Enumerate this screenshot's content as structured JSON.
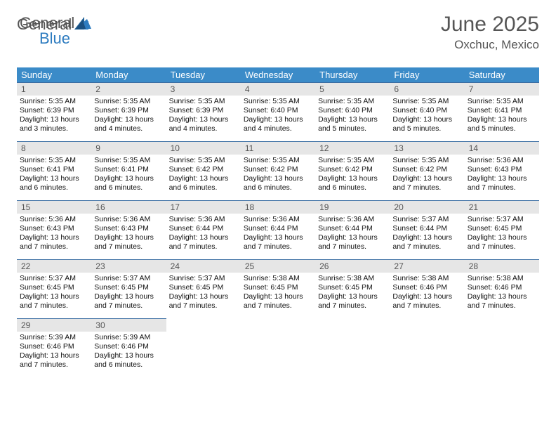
{
  "logo": {
    "general": "General",
    "blue": "Blue"
  },
  "title": "June 2025",
  "location": "Oxchuc, Mexico",
  "colors": {
    "header_bg": "#3b8bc8",
    "header_text": "#ffffff",
    "daynum_bg": "#e6e6e6",
    "daynum_border": "#3b6ea3",
    "title_color": "#555555",
    "logo_blue": "#2e7cc0"
  },
  "weekdays": [
    "Sunday",
    "Monday",
    "Tuesday",
    "Wednesday",
    "Thursday",
    "Friday",
    "Saturday"
  ],
  "weeks": [
    [
      {
        "day": "1",
        "sunrise": "Sunrise: 5:35 AM",
        "sunset": "Sunset: 6:39 PM",
        "daylight": "Daylight: 13 hours and 3 minutes."
      },
      {
        "day": "2",
        "sunrise": "Sunrise: 5:35 AM",
        "sunset": "Sunset: 6:39 PM",
        "daylight": "Daylight: 13 hours and 4 minutes."
      },
      {
        "day": "3",
        "sunrise": "Sunrise: 5:35 AM",
        "sunset": "Sunset: 6:39 PM",
        "daylight": "Daylight: 13 hours and 4 minutes."
      },
      {
        "day": "4",
        "sunrise": "Sunrise: 5:35 AM",
        "sunset": "Sunset: 6:40 PM",
        "daylight": "Daylight: 13 hours and 4 minutes."
      },
      {
        "day": "5",
        "sunrise": "Sunrise: 5:35 AM",
        "sunset": "Sunset: 6:40 PM",
        "daylight": "Daylight: 13 hours and 5 minutes."
      },
      {
        "day": "6",
        "sunrise": "Sunrise: 5:35 AM",
        "sunset": "Sunset: 6:40 PM",
        "daylight": "Daylight: 13 hours and 5 minutes."
      },
      {
        "day": "7",
        "sunrise": "Sunrise: 5:35 AM",
        "sunset": "Sunset: 6:41 PM",
        "daylight": "Daylight: 13 hours and 5 minutes."
      }
    ],
    [
      {
        "day": "8",
        "sunrise": "Sunrise: 5:35 AM",
        "sunset": "Sunset: 6:41 PM",
        "daylight": "Daylight: 13 hours and 6 minutes."
      },
      {
        "day": "9",
        "sunrise": "Sunrise: 5:35 AM",
        "sunset": "Sunset: 6:41 PM",
        "daylight": "Daylight: 13 hours and 6 minutes."
      },
      {
        "day": "10",
        "sunrise": "Sunrise: 5:35 AM",
        "sunset": "Sunset: 6:42 PM",
        "daylight": "Daylight: 13 hours and 6 minutes."
      },
      {
        "day": "11",
        "sunrise": "Sunrise: 5:35 AM",
        "sunset": "Sunset: 6:42 PM",
        "daylight": "Daylight: 13 hours and 6 minutes."
      },
      {
        "day": "12",
        "sunrise": "Sunrise: 5:35 AM",
        "sunset": "Sunset: 6:42 PM",
        "daylight": "Daylight: 13 hours and 6 minutes."
      },
      {
        "day": "13",
        "sunrise": "Sunrise: 5:35 AM",
        "sunset": "Sunset: 6:42 PM",
        "daylight": "Daylight: 13 hours and 7 minutes."
      },
      {
        "day": "14",
        "sunrise": "Sunrise: 5:36 AM",
        "sunset": "Sunset: 6:43 PM",
        "daylight": "Daylight: 13 hours and 7 minutes."
      }
    ],
    [
      {
        "day": "15",
        "sunrise": "Sunrise: 5:36 AM",
        "sunset": "Sunset: 6:43 PM",
        "daylight": "Daylight: 13 hours and 7 minutes."
      },
      {
        "day": "16",
        "sunrise": "Sunrise: 5:36 AM",
        "sunset": "Sunset: 6:43 PM",
        "daylight": "Daylight: 13 hours and 7 minutes."
      },
      {
        "day": "17",
        "sunrise": "Sunrise: 5:36 AM",
        "sunset": "Sunset: 6:44 PM",
        "daylight": "Daylight: 13 hours and 7 minutes."
      },
      {
        "day": "18",
        "sunrise": "Sunrise: 5:36 AM",
        "sunset": "Sunset: 6:44 PM",
        "daylight": "Daylight: 13 hours and 7 minutes."
      },
      {
        "day": "19",
        "sunrise": "Sunrise: 5:36 AM",
        "sunset": "Sunset: 6:44 PM",
        "daylight": "Daylight: 13 hours and 7 minutes."
      },
      {
        "day": "20",
        "sunrise": "Sunrise: 5:37 AM",
        "sunset": "Sunset: 6:44 PM",
        "daylight": "Daylight: 13 hours and 7 minutes."
      },
      {
        "day": "21",
        "sunrise": "Sunrise: 5:37 AM",
        "sunset": "Sunset: 6:45 PM",
        "daylight": "Daylight: 13 hours and 7 minutes."
      }
    ],
    [
      {
        "day": "22",
        "sunrise": "Sunrise: 5:37 AM",
        "sunset": "Sunset: 6:45 PM",
        "daylight": "Daylight: 13 hours and 7 minutes."
      },
      {
        "day": "23",
        "sunrise": "Sunrise: 5:37 AM",
        "sunset": "Sunset: 6:45 PM",
        "daylight": "Daylight: 13 hours and 7 minutes."
      },
      {
        "day": "24",
        "sunrise": "Sunrise: 5:37 AM",
        "sunset": "Sunset: 6:45 PM",
        "daylight": "Daylight: 13 hours and 7 minutes."
      },
      {
        "day": "25",
        "sunrise": "Sunrise: 5:38 AM",
        "sunset": "Sunset: 6:45 PM",
        "daylight": "Daylight: 13 hours and 7 minutes."
      },
      {
        "day": "26",
        "sunrise": "Sunrise: 5:38 AM",
        "sunset": "Sunset: 6:45 PM",
        "daylight": "Daylight: 13 hours and 7 minutes."
      },
      {
        "day": "27",
        "sunrise": "Sunrise: 5:38 AM",
        "sunset": "Sunset: 6:46 PM",
        "daylight": "Daylight: 13 hours and 7 minutes."
      },
      {
        "day": "28",
        "sunrise": "Sunrise: 5:38 AM",
        "sunset": "Sunset: 6:46 PM",
        "daylight": "Daylight: 13 hours and 7 minutes."
      }
    ],
    [
      {
        "day": "29",
        "sunrise": "Sunrise: 5:39 AM",
        "sunset": "Sunset: 6:46 PM",
        "daylight": "Daylight: 13 hours and 7 minutes."
      },
      {
        "day": "30",
        "sunrise": "Sunrise: 5:39 AM",
        "sunset": "Sunset: 6:46 PM",
        "daylight": "Daylight: 13 hours and 6 minutes."
      },
      null,
      null,
      null,
      null,
      null
    ]
  ]
}
